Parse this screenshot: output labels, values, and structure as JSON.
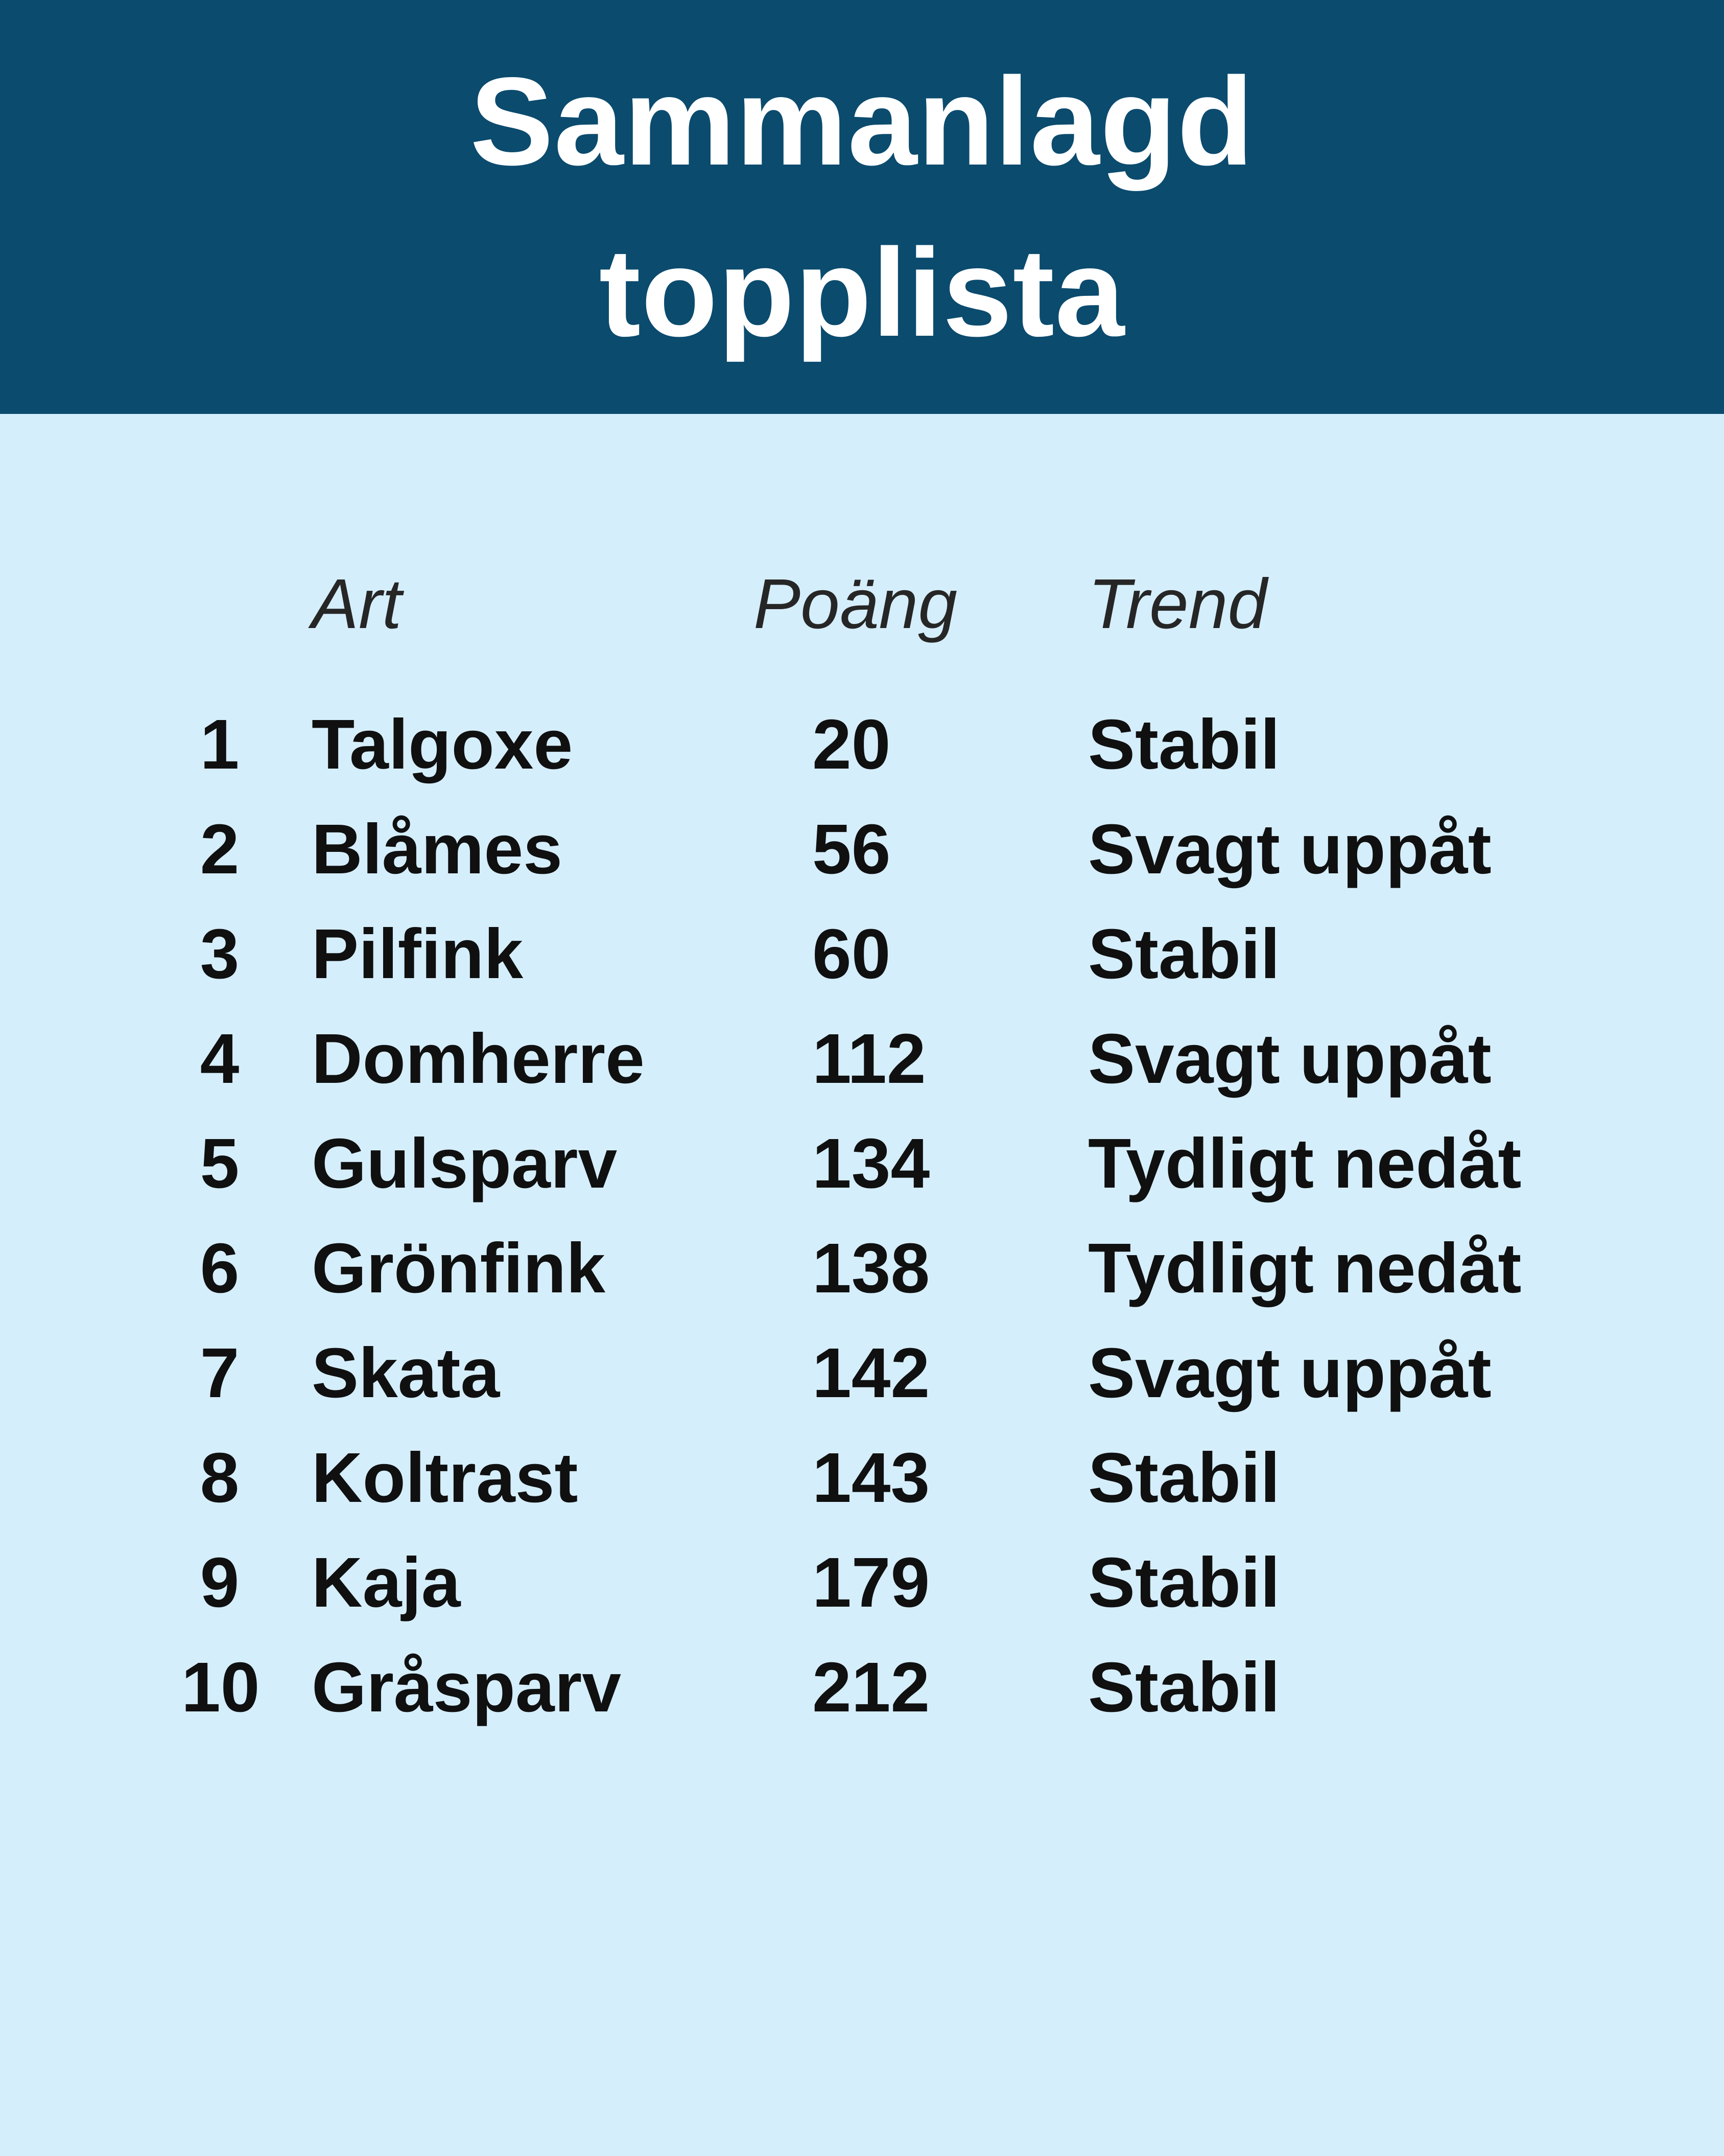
{
  "header": {
    "title_line1": "Sammanlagd",
    "title_line2": "topplista"
  },
  "table": {
    "columns": {
      "art": "Art",
      "poang": "Poäng",
      "trend": "Trend"
    },
    "rows": [
      {
        "rank": "1",
        "art": "Talgoxe",
        "poang": "20",
        "trend": "Stabil"
      },
      {
        "rank": "2",
        "art": "Blåmes",
        "poang": "56",
        "trend": "Svagt uppåt"
      },
      {
        "rank": "3",
        "art": "Pilfink",
        "poang": "60",
        "trend": "Stabil"
      },
      {
        "rank": "4",
        "art": "Domherre",
        "poang": "112",
        "trend": "Svagt uppåt"
      },
      {
        "rank": "5",
        "art": "Gulsparv",
        "poang": "134",
        "trend": "Tydligt nedåt"
      },
      {
        "rank": "6",
        "art": "Grönfink",
        "poang": "138",
        "trend": "Tydligt nedåt"
      },
      {
        "rank": "7",
        "art": "Skata",
        "poang": "142",
        "trend": "Svagt uppåt"
      },
      {
        "rank": "8",
        "art": "Koltrast",
        "poang": "143",
        "trend": "Stabil"
      },
      {
        "rank": "9",
        "art": "Kaja",
        "poang": "179",
        "trend": "Stabil"
      },
      {
        "rank": "10",
        "art": "Gråsparv",
        "poang": "212",
        "trend": "Stabil"
      }
    ]
  },
  "colors": {
    "banner_background": "#0B4B6E",
    "page_background": "#D5EEFC",
    "title_text": "#FFFFFF",
    "body_text": "#101010",
    "column_header_text": "#262626"
  },
  "chart_data": {
    "type": "table",
    "title": "Sammanlagd topplista",
    "columns": [
      "Art",
      "Poäng",
      "Trend"
    ],
    "categories": [
      "Talgoxe",
      "Blåmes",
      "Pilfink",
      "Domherre",
      "Gulsparv",
      "Grönfink",
      "Skata",
      "Koltrast",
      "Kaja",
      "Gråsparv"
    ],
    "values": [
      20,
      56,
      60,
      112,
      134,
      138,
      142,
      143,
      179,
      212
    ],
    "trends": [
      "Stabil",
      "Svagt uppåt",
      "Stabil",
      "Svagt uppåt",
      "Tydligt nedåt",
      "Tydligt nedåt",
      "Svagt uppåt",
      "Stabil",
      "Stabil",
      "Stabil"
    ],
    "ranks": [
      1,
      2,
      3,
      4,
      5,
      6,
      7,
      8,
      9,
      10
    ]
  }
}
